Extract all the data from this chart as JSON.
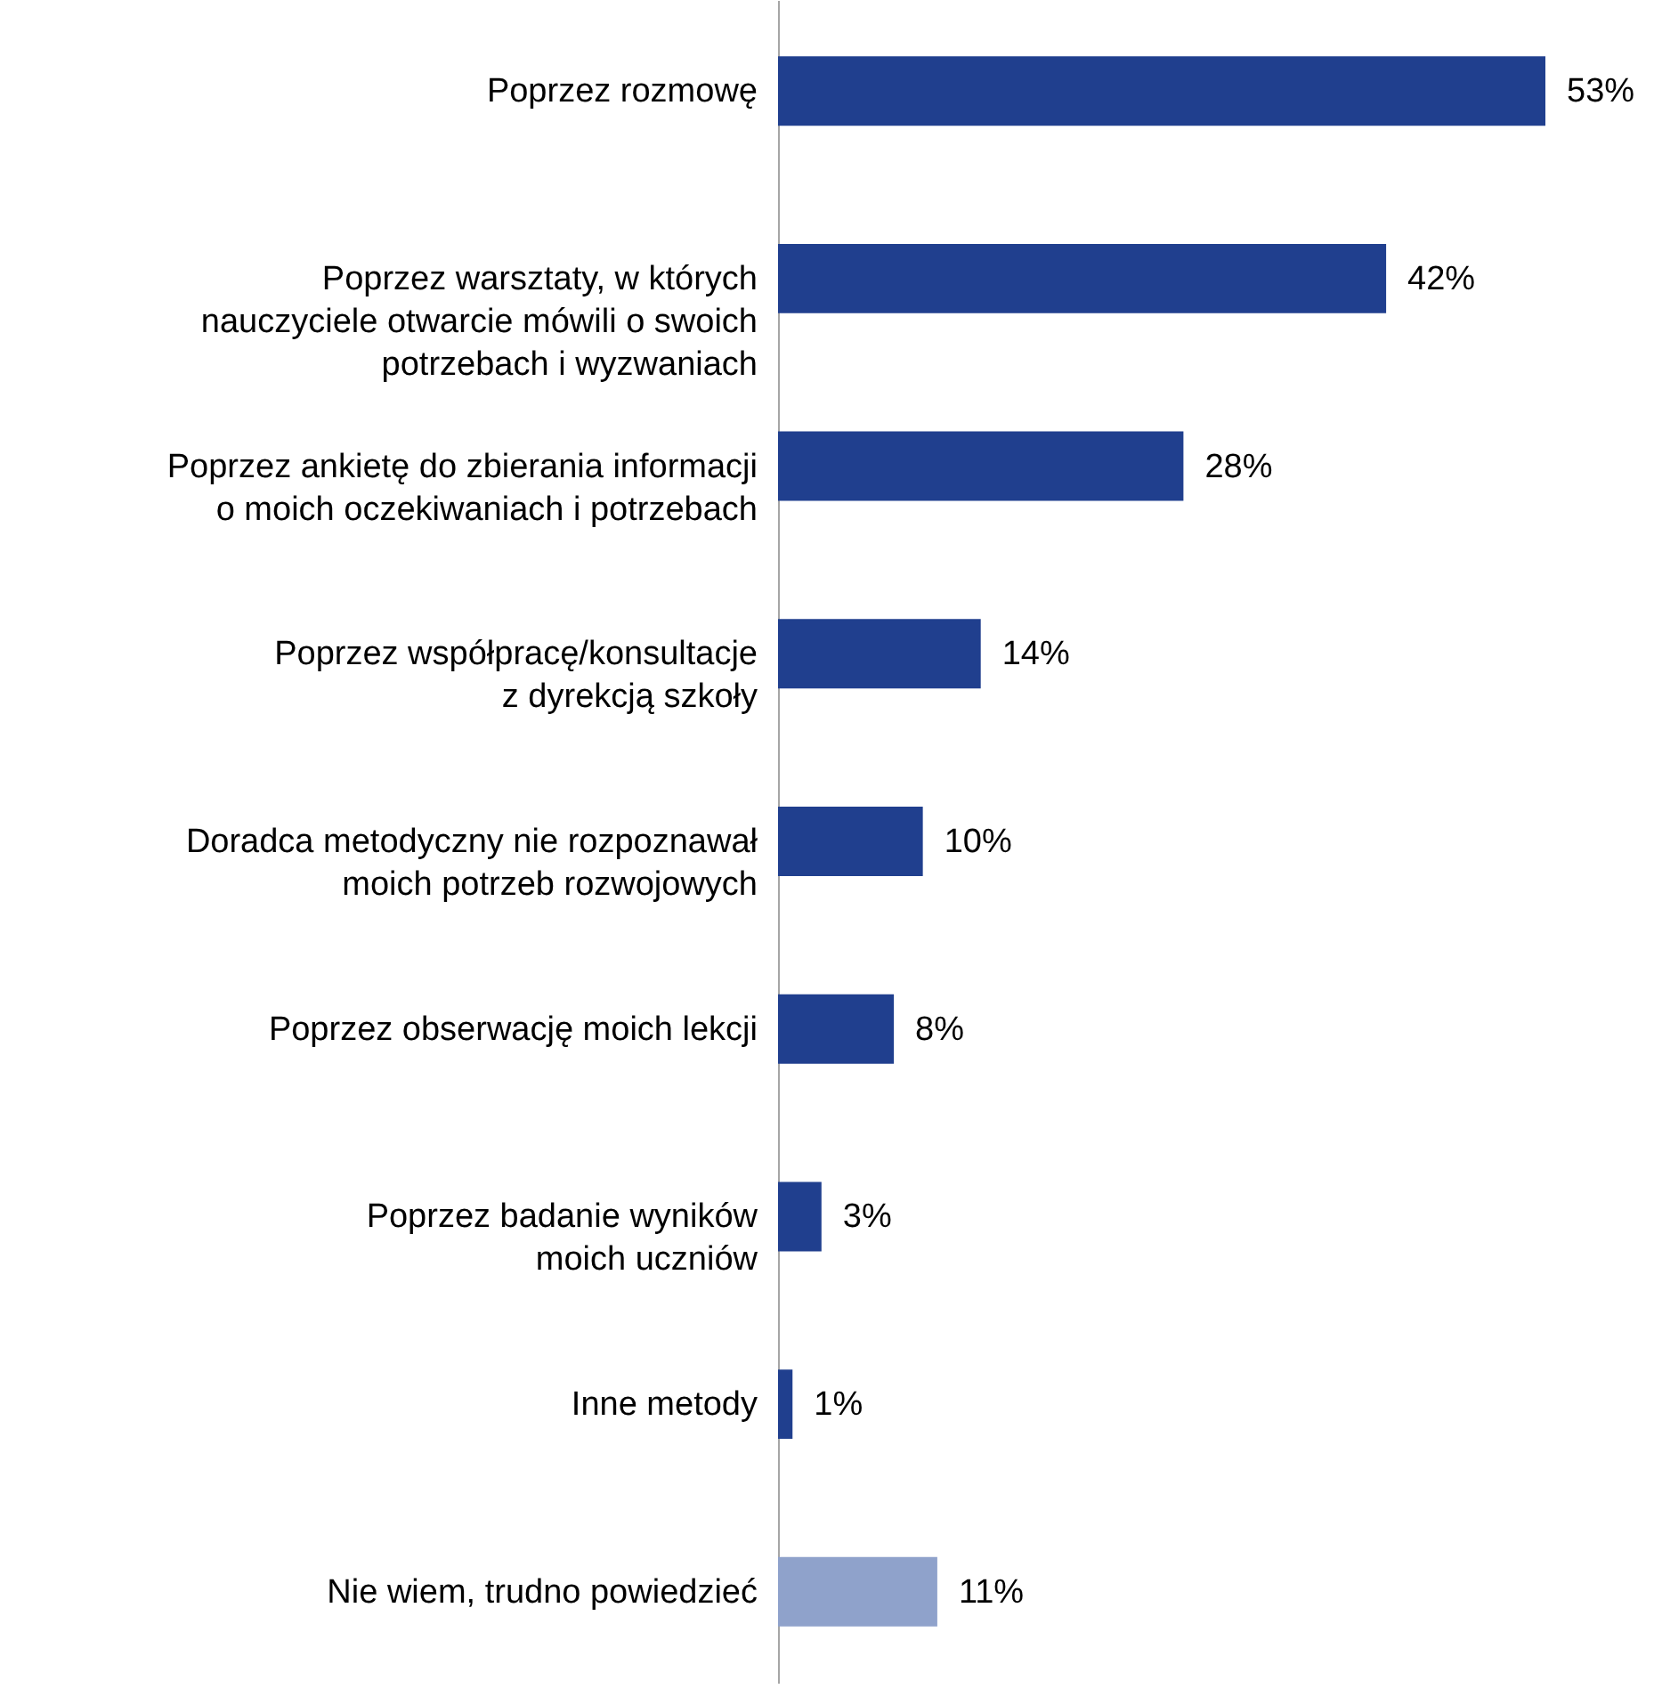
{
  "chart_data": {
    "type": "bar",
    "orientation": "horizontal",
    "categories": [
      "Poprzez rozmowę",
      "Poprzez warsztaty, w których\nnauczyciele otwarcie mówili o swoich\npotrzebach i wyzwaniach",
      "Poprzez ankietę do zbierania informacji\no moich oczekiwaniach i potrzebach",
      "Poprzez współpracę/konsultacje\nz dyrekcją szkoły",
      "Doradca metodyczny nie rozpoznawał\nmoich potrzeb rozwojowych",
      "Poprzez obserwację moich lekcji",
      "Poprzez badanie wyników\nmoich uczniów",
      "Inne metody",
      "Nie wiem, trudno powiedzieć"
    ],
    "values": [
      53,
      42,
      28,
      14,
      10,
      8,
      3,
      1,
      11
    ],
    "value_labels": [
      "53%",
      "42%",
      "28%",
      "14%",
      "10%",
      "8%",
      "3%",
      "1%",
      "11%"
    ],
    "colors": [
      "#203f8e",
      "#203f8e",
      "#203f8e",
      "#203f8e",
      "#203f8e",
      "#203f8e",
      "#203f8e",
      "#203f8e",
      "#8fa2cb"
    ],
    "grid": false
  }
}
